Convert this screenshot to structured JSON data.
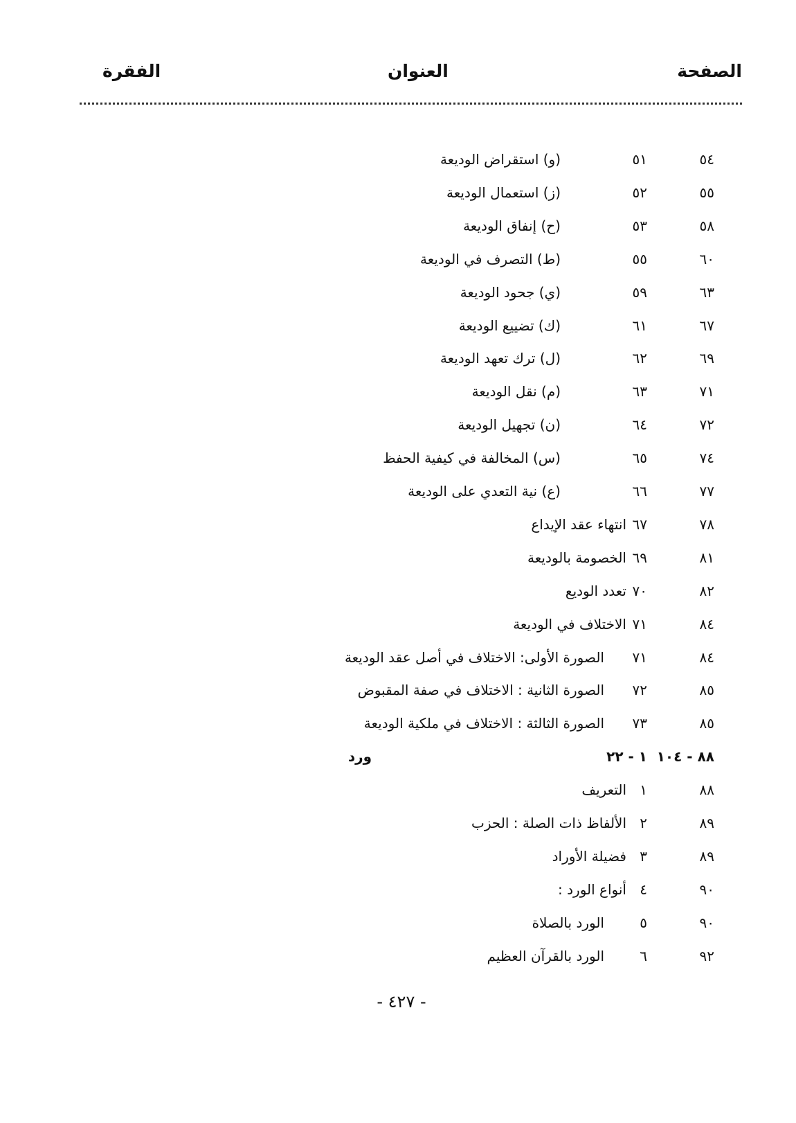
{
  "header": {
    "page_col": "الصفحة",
    "title_col": "العنوان",
    "paragraph_col": "الفقرة"
  },
  "rows": [
    {
      "page": "٥٤",
      "title": "(و) استقراض الوديعة",
      "paragraph": "٥١",
      "level": 1
    },
    {
      "page": "٥٥",
      "title": "(ز) استعمال الوديعة",
      "paragraph": "٥٢",
      "level": 1
    },
    {
      "page": "٥٨",
      "title": "(ح) إنفاق الوديعة",
      "paragraph": "٥٣",
      "level": 1
    },
    {
      "page": "٦٠",
      "title": "(ط) التصرف في الوديعة",
      "paragraph": "٥٥",
      "level": 1
    },
    {
      "page": "٦٣",
      "title": "(ي) جحود الوديعة",
      "paragraph": "٥٩",
      "level": 1
    },
    {
      "page": "٦٧",
      "title": "(ك) تضييع الوديعة",
      "paragraph": "٦١",
      "level": 1
    },
    {
      "page": "٦٩",
      "title": "(ل) ترك تعهد الوديعة",
      "paragraph": "٦٢",
      "level": 1
    },
    {
      "page": "٧١",
      "title": "(م) نقل الوديعة",
      "paragraph": "٦٣",
      "level": 1
    },
    {
      "page": "٧٢",
      "title": "(ن) تجهيل الوديعة",
      "paragraph": "٦٤",
      "level": 1
    },
    {
      "page": "٧٤",
      "title": "(س) المخالفة في كيفية الحفظ",
      "paragraph": "٦٥",
      "level": 1
    },
    {
      "page": "٧٧",
      "title": "(ع) نية التعدي على الوديعة",
      "paragraph": "٦٦",
      "level": 1
    },
    {
      "page": "٧٨",
      "title": "انتهاء عقد الإيداع",
      "paragraph": "٦٧",
      "level": 0
    },
    {
      "page": "٨١",
      "title": "الخصومة بالوديعة",
      "paragraph": "٦٩",
      "level": 0
    },
    {
      "page": "٨٢",
      "title": "تعدد الوديع",
      "paragraph": "٧٠",
      "level": 0
    },
    {
      "page": "٨٤",
      "title": "الاختلاف في الوديعة",
      "paragraph": "٧١",
      "level": 0
    },
    {
      "page": "٨٤",
      "title": "الصورة الأولى: الاختلاف في أصل عقد الوديعة",
      "paragraph": "٧١",
      "level": 2
    },
    {
      "page": "٨٥",
      "title": "الصورة الثانية : الاختلاف في صفة المقبوض",
      "paragraph": "٧٢",
      "level": 2
    },
    {
      "page": "٨٥",
      "title": "الصورة الثالثة : الاختلاف في ملكية الوديعة",
      "paragraph": "٧٣",
      "level": 2
    },
    {
      "page": "٨٨ - ١٠٤",
      "title": "ورد",
      "paragraph": "١ - ٢٢",
      "level": "bold"
    },
    {
      "page": "٨٨",
      "title": "التعريف",
      "paragraph": "١",
      "level": 0
    },
    {
      "page": "٨٩",
      "title": "الألفاظ ذات الصلة : الحزب",
      "paragraph": "٢",
      "level": 0
    },
    {
      "page": "٨٩",
      "title": "فضيلة الأوراد",
      "paragraph": "٣",
      "level": 0
    },
    {
      "page": "٩٠",
      "title": "أنواع الورد :",
      "paragraph": "٤",
      "level": 0
    },
    {
      "page": "٩٠",
      "title": "الورد بالصلاة",
      "paragraph": "٥",
      "level": 2
    },
    {
      "page": "٩٢",
      "title": "الورد بالقرآن العظيم",
      "paragraph": "٦",
      "level": 2
    }
  ],
  "footer": {
    "page_number": "- ٤٢٧ -"
  }
}
